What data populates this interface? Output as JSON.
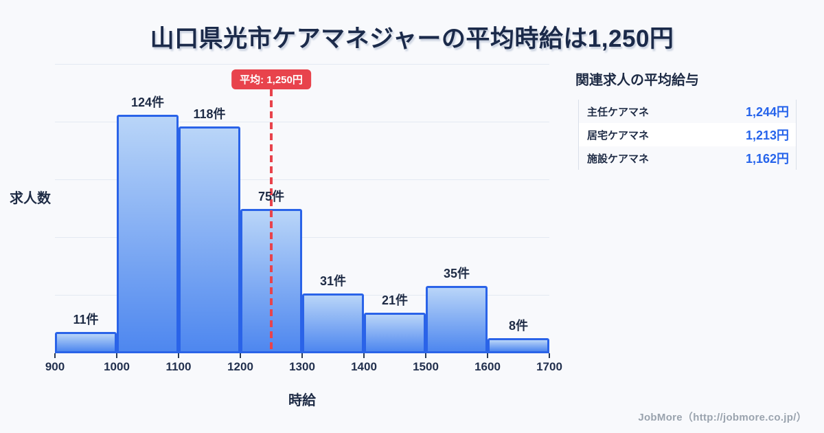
{
  "page": {
    "title": "山口県光市ケアマネジャーの平均時給は1,250円"
  },
  "chart_data": {
    "type": "bar",
    "title": "山口県光市ケアマネジャーの平均時給は1,250円",
    "xlabel": "時給",
    "ylabel": "求人数",
    "bin_edges": [
      900,
      1000,
      1100,
      1200,
      1300,
      1400,
      1500,
      1600,
      1700
    ],
    "x_ticks": [
      "900",
      "1000",
      "1100",
      "1200",
      "1300",
      "1400",
      "1500",
      "1600",
      "1700"
    ],
    "values": [
      11,
      124,
      118,
      75,
      31,
      21,
      35,
      8
    ],
    "bar_labels": [
      "11件",
      "124件",
      "118件",
      "75件",
      "31件",
      "21件",
      "35件",
      "8件"
    ],
    "ylim": [
      0,
      150
    ],
    "grid_step": 30,
    "grid": true,
    "legend": false,
    "average_line": {
      "value": 1250,
      "label": "平均: 1,250円"
    },
    "colors": {
      "bar_fill_top": "#b9d5f8",
      "bar_fill_bottom": "#4e87ef",
      "bar_border": "#2a63e8",
      "average_red": "#e8434c",
      "grid_line": "#e3e9f2",
      "text_dark": "#1e2b45",
      "value_blue": "#2563eb",
      "background": "#f8f9fc"
    }
  },
  "side_panel": {
    "heading": "関連求人の平均給与",
    "rows": [
      {
        "label": "主任ケアマネ",
        "value": "1,244円"
      },
      {
        "label": "居宅ケアマネ",
        "value": "1,213円"
      },
      {
        "label": "施設ケアマネ",
        "value": "1,162円"
      }
    ]
  },
  "footer": {
    "credit": "JobMore（http://jobmore.co.jp/）"
  }
}
